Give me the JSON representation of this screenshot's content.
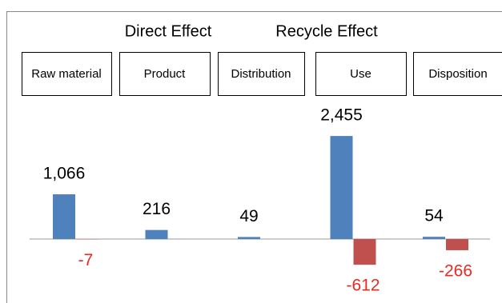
{
  "chart_data": {
    "type": "bar",
    "categories": [
      "Raw material",
      "Product",
      "Distribution",
      "Use",
      "Disposition"
    ],
    "series": [
      {
        "name": "Direct Effect",
        "color": "#4f81bd",
        "values": [
          1066,
          216,
          49,
          2455,
          54
        ],
        "value_labels": [
          "1,066",
          "216",
          "49",
          "2,455",
          "54"
        ]
      },
      {
        "name": "Recycle Effect",
        "color": "#c0504d",
        "values": [
          -7,
          null,
          null,
          -612,
          -266
        ]
      }
    ],
    "ylim": [
      -1400,
      3000
    ]
  }
}
